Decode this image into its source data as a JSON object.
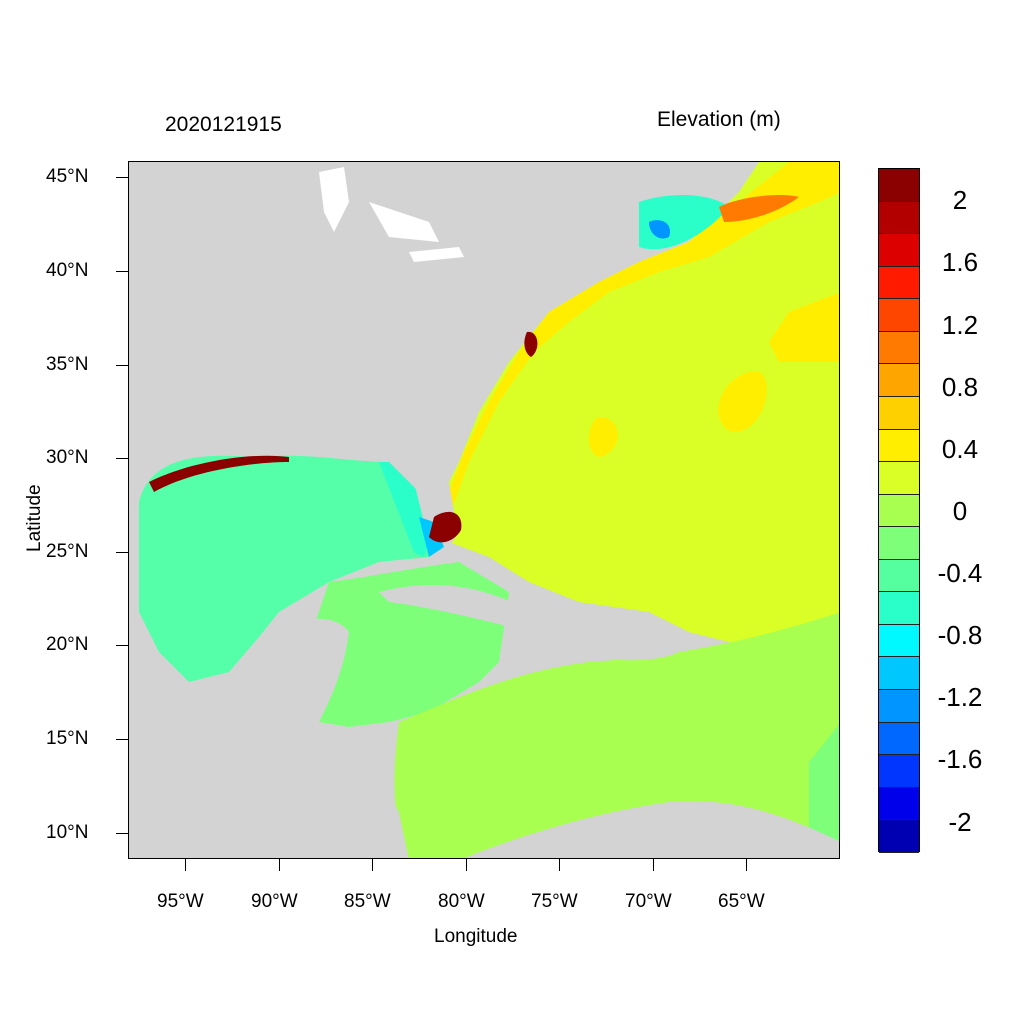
{
  "title_left": "2020121915",
  "title_right": "Elevation (m)",
  "axes": {
    "x_label": "Longitude",
    "y_label": "Latitude",
    "x_ticks": [
      "95°W",
      "90°W",
      "85°W",
      "80°W",
      "75°W",
      "70°W",
      "65°W"
    ],
    "y_ticks": [
      "45°N",
      "40°N",
      "35°N",
      "30°N",
      "25°N",
      "20°N",
      "15°N",
      "10°N"
    ],
    "lon_range": [
      -98,
      -60
    ],
    "lat_range": [
      8.5,
      46
    ]
  },
  "colorbar": {
    "labels": [
      "2",
      "1.6",
      "1.2",
      "0.8",
      "0.4",
      "0",
      "-0.4",
      "-0.8",
      "-1.2",
      "-1.6",
      "-2"
    ],
    "colors": [
      "#8b0000",
      "#b20000",
      "#dd0000",
      "#ff1a00",
      "#ff4600",
      "#ff7a00",
      "#ffa500",
      "#ffd000",
      "#ffee00",
      "#d9ff26",
      "#a8ff50",
      "#7dff7a",
      "#55ffa0",
      "#2affca",
      "#00f8ff",
      "#00c8ff",
      "#0095ff",
      "#0068ff",
      "#0036ff",
      "#0000ea",
      "#0000b3"
    ]
  },
  "map_colors": {
    "land": "#d3d3d3",
    "lakes": "#ffffff",
    "gulf": "#55ffa9",
    "caribbean": "#a8ff50",
    "western_caribbean": "#7dff7a",
    "atlantic": "#d9ff26",
    "shelf": "#ffee00",
    "surge": "#8b0000"
  }
}
